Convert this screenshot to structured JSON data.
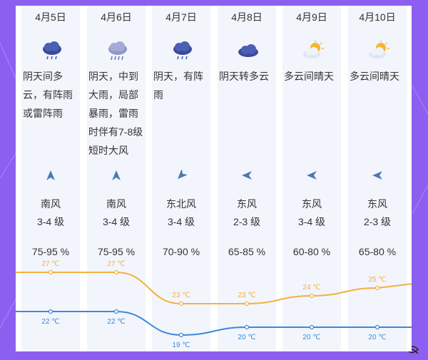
{
  "days": [
    {
      "date": "4月5日",
      "icon": "thunder-shower-icon",
      "desc": "阴天间多云，有阵雨或雷阵雨",
      "wind_dir_icon": "south-wind-arrow-icon",
      "wind_name": "南风",
      "wind_level": "3-4 级",
      "humidity": "75-95 %",
      "high": 27,
      "low": 22,
      "high_label": "27 ℃",
      "low_label": "22 ℃"
    },
    {
      "date": "4月6日",
      "icon": "heavy-rain-icon",
      "desc": "阴天，中到大雨，局部暴雨，雷雨时伴有7-8级短时大风",
      "wind_dir_icon": "south-wind-arrow-icon",
      "wind_name": "南风",
      "wind_level": "3-4 级",
      "humidity": "75-95 %",
      "high": 27,
      "low": 22,
      "high_label": "27 ℃",
      "low_label": "22 ℃"
    },
    {
      "date": "4月7日",
      "icon": "thunder-shower-icon",
      "desc": "阴天，有阵雨",
      "wind_dir_icon": "northeast-wind-arrow-icon",
      "wind_name": "东北风",
      "wind_level": "3-4 级",
      "humidity": "70-90 %",
      "high": 23,
      "low": 19,
      "high_label": "23 ℃",
      "low_label": "19 ℃"
    },
    {
      "date": "4月8日",
      "icon": "overcast-icon",
      "desc": "阴天转多云",
      "wind_dir_icon": "east-wind-arrow-icon",
      "wind_name": "东风",
      "wind_level": "2-3 级",
      "humidity": "65-85 %",
      "high": 23,
      "low": 20,
      "high_label": "23 ℃",
      "low_label": "20 ℃"
    },
    {
      "date": "4月9日",
      "icon": "partly-cloudy-icon",
      "desc": "多云间晴天",
      "wind_dir_icon": "east-wind-arrow-icon",
      "wind_name": "东风",
      "wind_level": "3-4 级",
      "humidity": "60-80 %",
      "high": 24,
      "low": 20,
      "high_label": "24 ℃",
      "low_label": "20 ℃"
    },
    {
      "date": "4月10日",
      "icon": "partly-cloudy-icon",
      "desc": "多云间晴天",
      "wind_dir_icon": "east-wind-arrow-icon",
      "wind_name": "东风",
      "wind_level": "2-3 级",
      "humidity": "65-80 %",
      "high": 25,
      "low": 20,
      "high_label": "25 ℃",
      "low_label": "20 ℃"
    }
  ],
  "colors": {
    "high_line": "#f2b13e",
    "low_line": "#3a8ad8",
    "background": "#8d5ff0",
    "column": "#f3f5fc"
  }
}
